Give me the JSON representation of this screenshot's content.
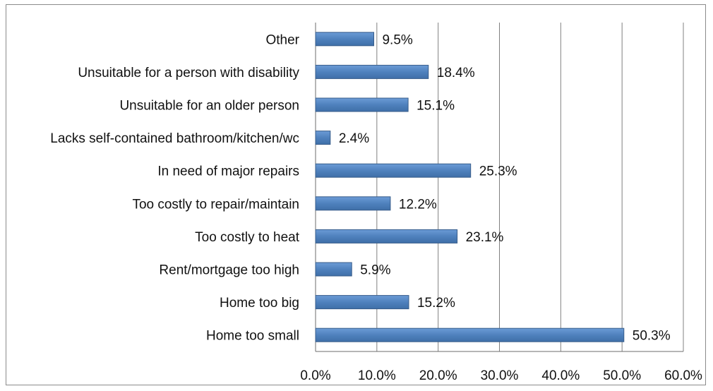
{
  "chart_data": {
    "type": "bar",
    "orientation": "horizontal",
    "categories": [
      "Other",
      "Unsuitable for a person with disability",
      "Unsuitable for an older person",
      "Lacks self-contained bathroom/kitchen/wc",
      "In need of major repairs",
      "Too costly to repair/maintain",
      "Too costly to heat",
      "Rent/mortgage too high",
      "Home too big",
      "Home too small"
    ],
    "values": [
      9.5,
      18.4,
      15.1,
      2.4,
      25.3,
      12.2,
      23.1,
      5.9,
      15.2,
      50.3
    ],
    "data_labels": [
      "9.5%",
      "18.4%",
      "15.1%",
      "2.4%",
      "25.3%",
      "12.2%",
      "23.1%",
      "5.9%",
      "15.2%",
      "50.3%"
    ],
    "x_ticks": [
      "0.0%",
      "10.0%",
      "20.0%",
      "30.0%",
      "40.0%",
      "50.0%",
      "60.0%"
    ],
    "xlim": [
      0,
      60
    ],
    "title": "",
    "xlabel": "",
    "ylabel": "",
    "grid": "vertical",
    "legend": "none",
    "colors": {
      "bar": "#4f81bd",
      "bar_edge": "#385d8a",
      "grid": "#808080",
      "text": "#111111"
    }
  }
}
